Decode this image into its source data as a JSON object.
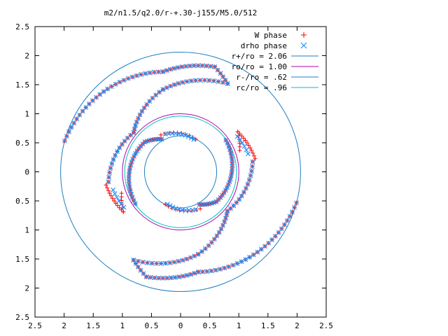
{
  "chart_data": {
    "type": "scatter",
    "title": "m2/n1.5/q2.0/r-+.30-j155/M5.0/512",
    "xlabel": "",
    "ylabel": "",
    "xlim": [
      -2.5,
      2.5
    ],
    "ylim": [
      -2.5,
      2.5
    ],
    "x_tick_labels": [
      "2.5",
      "2",
      "1.5",
      "1",
      "0.5",
      "0",
      "0.5",
      "1",
      "1.5",
      "2",
      "2.5"
    ],
    "y_tick_labels": [
      "2.5",
      "2",
      "1.5",
      "1",
      "0.5",
      "0",
      "0.5",
      "1",
      "1.5",
      "2",
      "2.5"
    ],
    "grid": false,
    "legend_position": "top-right",
    "series": [
      {
        "name": "W phase",
        "marker": "plus",
        "color": "#ff0000"
      },
      {
        "name": "drho phase",
        "marker": "cross",
        "color": "#1e90ff"
      }
    ],
    "circles": [
      {
        "name": "r+/ro = 2.06",
        "r": 2.06,
        "color": "#1f7fbf"
      },
      {
        "name": "ro/ro = 1.00",
        "r": 1.0,
        "color": "#b000b0"
      },
      {
        "name": "r-/ro = .62",
        "r": 0.62,
        "color": "#1f7fbf"
      },
      {
        "name": "rc/ro = .96",
        "r": 0.96,
        "color": "#00c0c0"
      }
    ]
  }
}
